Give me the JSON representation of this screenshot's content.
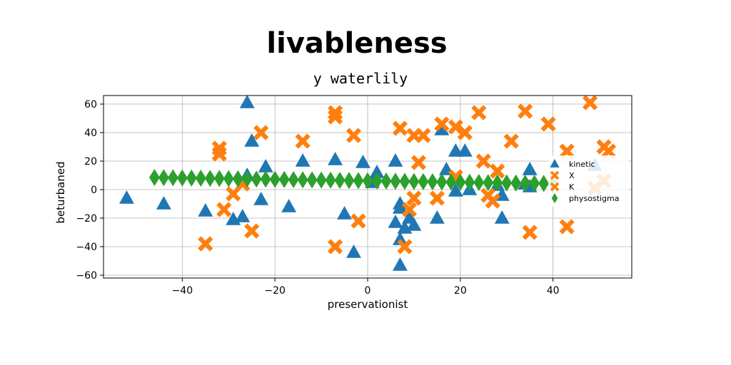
{
  "chart_data": {
    "type": "scatter",
    "suptitle": "livableness",
    "title": "y waterlily",
    "xlabel": "preservationist",
    "ylabel": "beturbaned",
    "xlim": [
      -57,
      57
    ],
    "ylim": [
      -62,
      66
    ],
    "xticks": [
      -40,
      -20,
      0,
      20,
      40
    ],
    "yticks": [
      -60,
      -40,
      -20,
      0,
      20,
      40,
      60
    ],
    "grid": true,
    "legend_position": "right",
    "series": [
      {
        "name": "kinetic",
        "marker": "triangle",
        "color": "#1f77b4",
        "points": [
          [
            -52,
            -6
          ],
          [
            -44,
            -10
          ],
          [
            -35,
            -15
          ],
          [
            -29,
            -21
          ],
          [
            -27,
            -19
          ],
          [
            -26,
            61
          ],
          [
            -26,
            10
          ],
          [
            -25,
            34
          ],
          [
            -23,
            -7
          ],
          [
            -22,
            16
          ],
          [
            -17,
            -12
          ],
          [
            -14,
            20
          ],
          [
            -7,
            21
          ],
          [
            -5,
            -17
          ],
          [
            -3,
            -44
          ],
          [
            -1,
            19
          ],
          [
            1,
            5
          ],
          [
            2,
            12
          ],
          [
            6,
            20
          ],
          [
            6,
            -23
          ],
          [
            7,
            -10
          ],
          [
            7,
            -13
          ],
          [
            7,
            -35
          ],
          [
            7,
            -53
          ],
          [
            8,
            -27
          ],
          [
            9,
            -20
          ],
          [
            10,
            -25
          ],
          [
            15,
            -20
          ],
          [
            16,
            42
          ],
          [
            17,
            14
          ],
          [
            19,
            -1
          ],
          [
            19,
            27
          ],
          [
            21,
            27
          ],
          [
            22,
            0
          ],
          [
            28,
            3
          ],
          [
            29,
            -4
          ],
          [
            29,
            -20
          ],
          [
            34,
            4
          ],
          [
            35,
            14
          ],
          [
            35,
            2
          ],
          [
            49,
            17
          ]
        ]
      },
      {
        "name": "X",
        "marker": "x",
        "color": "#ff7f0e",
        "points": [
          [
            -35,
            -38
          ],
          [
            -32,
            29
          ],
          [
            -32,
            25
          ],
          [
            -31,
            -14
          ],
          [
            -29,
            -3
          ],
          [
            -27,
            4
          ],
          [
            -25,
            -29
          ],
          [
            -23,
            40
          ],
          [
            -14,
            34
          ],
          [
            -7,
            54
          ],
          [
            -7,
            51
          ],
          [
            -7,
            -40
          ],
          [
            -3,
            38
          ],
          [
            -2,
            -22
          ],
          [
            7,
            43
          ],
          [
            8,
            -40
          ],
          [
            9,
            -14
          ],
          [
            10,
            -6
          ],
          [
            10,
            38
          ],
          [
            11,
            19
          ],
          [
            12,
            38
          ],
          [
            15,
            -6
          ],
          [
            16,
            46
          ],
          [
            19,
            44
          ],
          [
            19,
            9
          ],
          [
            21,
            40
          ],
          [
            24,
            54
          ],
          [
            25,
            20
          ],
          [
            26,
            -4
          ],
          [
            27,
            -8
          ],
          [
            28,
            13
          ],
          [
            31,
            34
          ],
          [
            34,
            55
          ],
          [
            35,
            -30
          ],
          [
            39,
            46
          ],
          [
            43,
            -26
          ],
          [
            43,
            27
          ],
          [
            48,
            61
          ],
          [
            49,
            1
          ],
          [
            51,
            30
          ],
          [
            51,
            6
          ],
          [
            52,
            27
          ]
        ]
      },
      {
        "name": "K",
        "marker": "x",
        "color": "#ff7f0e",
        "points": []
      },
      {
        "name": "physostigma",
        "marker": "diamond",
        "color": "#2ca02c",
        "points": [
          [
            -46,
            8.5
          ],
          [
            -44,
            8.4
          ],
          [
            -42,
            8.3
          ],
          [
            -40,
            8.2
          ],
          [
            -38,
            8.1
          ],
          [
            -36,
            8.0
          ],
          [
            -34,
            7.9
          ],
          [
            -32,
            7.8
          ],
          [
            -30,
            7.7
          ],
          [
            -28,
            7.6
          ],
          [
            -26,
            7.5
          ],
          [
            -24,
            7.4
          ],
          [
            -22,
            7.3
          ],
          [
            -20,
            7.2
          ],
          [
            -18,
            7.1
          ],
          [
            -16,
            7.0
          ],
          [
            -14,
            6.9
          ],
          [
            -12,
            6.8
          ],
          [
            -10,
            6.7
          ],
          [
            -8,
            6.6
          ],
          [
            -6,
            6.5
          ],
          [
            -4,
            6.4
          ],
          [
            -2,
            6.3
          ],
          [
            0,
            6.2
          ],
          [
            2,
            6.1
          ],
          [
            4,
            6.0
          ],
          [
            6,
            5.9
          ],
          [
            8,
            5.8
          ],
          [
            10,
            5.7
          ],
          [
            12,
            5.6
          ],
          [
            14,
            5.5
          ],
          [
            16,
            5.4
          ],
          [
            18,
            5.3
          ],
          [
            20,
            5.2
          ],
          [
            22,
            5.1
          ],
          [
            24,
            5.0
          ],
          [
            26,
            4.9
          ],
          [
            28,
            4.8
          ],
          [
            30,
            4.7
          ],
          [
            32,
            4.6
          ],
          [
            34,
            4.5
          ],
          [
            36,
            4.4
          ],
          [
            38,
            4.3
          ],
          [
            40,
            4.2
          ]
        ]
      }
    ]
  }
}
